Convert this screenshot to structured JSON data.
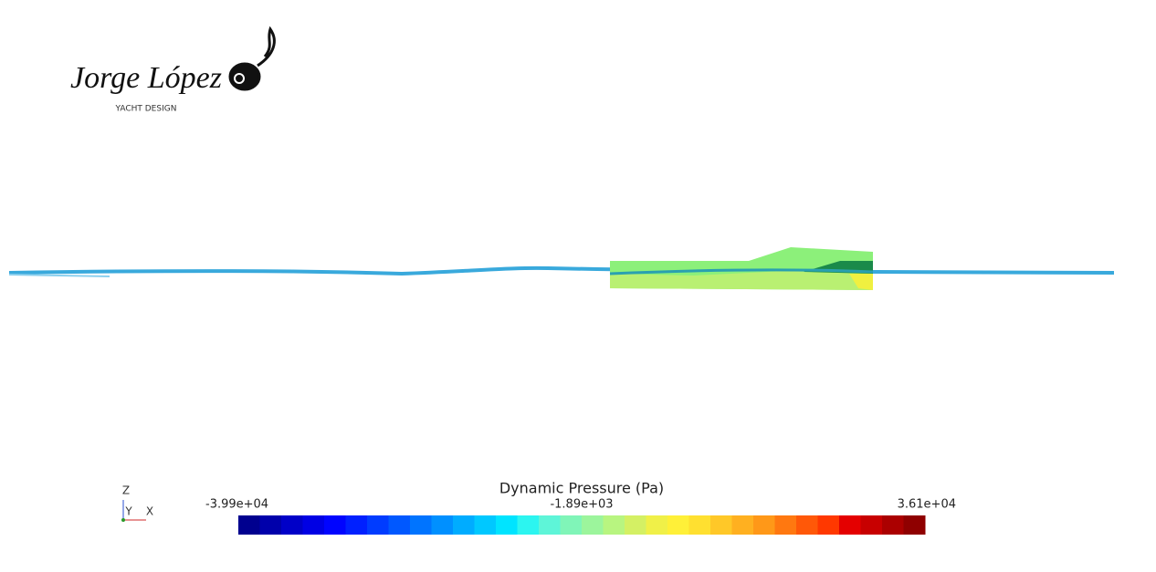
{
  "logo": {
    "name": "Jorge López",
    "subtitle": "YACHT DESIGN"
  },
  "axes_triad": {
    "z": "Z",
    "y": "Y",
    "x": "X"
  },
  "colorbar": {
    "title": "Dynamic Pressure (Pa)",
    "labels": [
      "-3.99e+04",
      "-1.89e+03",
      "3.61e+04"
    ],
    "colors": [
      "#00008f",
      "#0000ab",
      "#0000c8",
      "#0000e4",
      "#0004ff",
      "#0020ff",
      "#003cff",
      "#0058ff",
      "#0074ff",
      "#0090ff",
      "#00acff",
      "#00c8ff",
      "#00e4ff",
      "#2cf5f0",
      "#5ef5d8",
      "#80f5b8",
      "#9cf59c",
      "#b8f580",
      "#d4f064",
      "#f0f048",
      "#fff038",
      "#ffe030",
      "#ffc828",
      "#ffb020",
      "#ff9818",
      "#ff7810",
      "#ff5808",
      "#ff3800",
      "#e40000",
      "#c80000",
      "#ab0000",
      "#8f0000"
    ]
  }
}
